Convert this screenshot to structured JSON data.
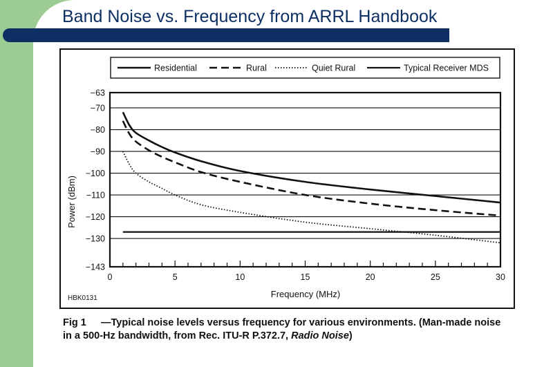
{
  "slide": {
    "title": "Band Noise vs. Frequency from ARRL Handbook"
  },
  "figure": {
    "code": "HBK0131",
    "caption_label": "Fig 1",
    "caption_text": "—Typical noise levels versus frequency for various environments. (Man-made noise in a 500-Hz bandwidth, from Rec. ITU-R P.372.7, ",
    "caption_italic": "Radio Noise",
    "caption_end": ")"
  },
  "colors": {
    "slide_title": "#0d2f63",
    "accent_band": "#9ccb94",
    "line": "#111111"
  },
  "chart_data": {
    "type": "line",
    "title": "",
    "xlabel": "Frequency (MHz)",
    "ylabel": "Power (dBm)",
    "xlim": [
      0,
      30
    ],
    "ylim": [
      -143,
      -63
    ],
    "xticks": [
      0,
      5,
      10,
      15,
      20,
      25,
      30
    ],
    "xtick_labels": [
      "0",
      "5",
      "10",
      "15",
      "20",
      "25",
      "30"
    ],
    "yticks": [
      -63,
      -70,
      -80,
      -90,
      -100,
      -110,
      -120,
      -130,
      -143
    ],
    "ytick_labels": [
      "−63",
      "−70",
      "−80",
      "−90",
      "−100",
      "−110",
      "−120",
      "−130",
      "−143"
    ],
    "legend_position": "top",
    "series": [
      {
        "name": "Residential",
        "style": "solid",
        "x": [
          1,
          1.5,
          2,
          3,
          4,
          5,
          7,
          10,
          15,
          20,
          25,
          30
        ],
        "y": [
          -72,
          -78,
          -81.5,
          -85,
          -88,
          -90.5,
          -94.5,
          -99,
          -104,
          -107.5,
          -110.5,
          -113.5
        ]
      },
      {
        "name": "Rural",
        "style": "dashed",
        "x": [
          1,
          1.5,
          2,
          3,
          4,
          5,
          7,
          10,
          15,
          20,
          25,
          30
        ],
        "y": [
          -76,
          -82,
          -85.5,
          -89.5,
          -92.5,
          -95,
          -99.5,
          -104,
          -110,
          -114,
          -117,
          -119.5
        ]
      },
      {
        "name": "Quiet Rural",
        "style": "dotted",
        "x": [
          1,
          1.5,
          2,
          3,
          4,
          5,
          7,
          10,
          15,
          20,
          25,
          30
        ],
        "y": [
          -90,
          -96,
          -100,
          -104,
          -107,
          -110,
          -114.5,
          -118,
          -122.5,
          -125.5,
          -128.5,
          -132
        ]
      },
      {
        "name": "Typical Receiver MDS",
        "style": "solid-thin",
        "x": [
          1,
          30
        ],
        "y": [
          -127,
          -127
        ]
      }
    ]
  }
}
